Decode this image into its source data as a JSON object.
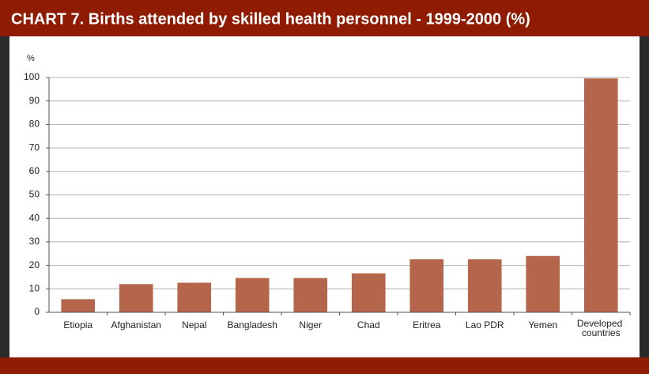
{
  "chart_data": {
    "type": "bar",
    "title": "CHART 7. Births attended by skilled health personnel - 1999-2000 (%)",
    "y_label": "%",
    "categories": [
      "Etiopia",
      "Afghanistan",
      "Nepal",
      "Bangladesh",
      "Niger",
      "Chad",
      "Eritrea",
      "Lao PDR",
      "Yemen",
      "Developed countries"
    ],
    "values": [
      5.6,
      12,
      12.6,
      14.6,
      14.6,
      16.6,
      22.6,
      22.6,
      24,
      99.6
    ],
    "color": "#b5654a",
    "ylim": [
      0,
      100
    ],
    "yticks": [
      0,
      10,
      20,
      30,
      40,
      50,
      60,
      70,
      80,
      90,
      100
    ],
    "grid": true
  }
}
